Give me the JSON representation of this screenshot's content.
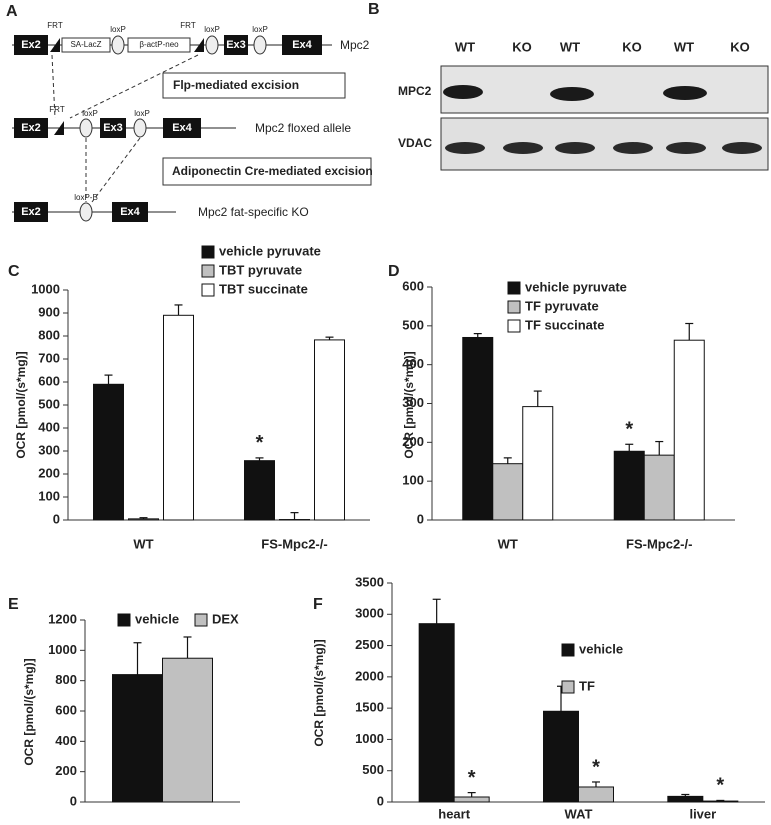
{
  "diagram": {
    "panel_label": "A",
    "rows": [
      {
        "label": "Mpc2",
        "elements": [
          "Ex2",
          "SA-LacZ",
          "β-actP-neo",
          "Ex3",
          "Ex4"
        ],
        "sites": [
          "FRT",
          "loxP",
          "FRT",
          "loxP",
          "loxP"
        ]
      },
      {
        "label": "Mpc2 floxed allele",
        "elements": [
          "Ex2",
          "Ex3",
          "Ex4"
        ],
        "sites": [
          "FRT",
          "loxP",
          "loxP"
        ]
      },
      {
        "label": "Mpc2 fat-specific KO",
        "elements": [
          "Ex2",
          "Ex4"
        ],
        "sites": [
          "loxP-B"
        ]
      }
    ],
    "steps": [
      "Flp-mediated excision",
      "Adiponectin Cre-mediated excision"
    ]
  },
  "blot": {
    "panel_label": "B",
    "lanes": [
      "WT",
      "KO",
      "WT",
      "KO",
      "WT",
      "KO"
    ],
    "rows": [
      "MPC2",
      "VDAC"
    ]
  },
  "chart_data": [
    {
      "type": "bar",
      "panel_label": "C",
      "y_label": "OCR [pmol/(s*mg)]",
      "categories": [
        "WT",
        "FS-Mpc2-/-"
      ],
      "series": [
        {
          "name": "vehicle pyruvate",
          "color": "#111111",
          "values": [
            590,
            258
          ],
          "errors": [
            40,
            12
          ],
          "significance": [
            null,
            "*"
          ]
        },
        {
          "name": "TBT pyruvate",
          "color": "#c0c0c0",
          "values": [
            5,
            2
          ],
          "errors": [
            5,
            30
          ],
          "significance": [
            null,
            null
          ]
        },
        {
          "name": "TBT succinate",
          "color": "#ffffff",
          "values": [
            890,
            783
          ],
          "errors": [
            45,
            12
          ],
          "significance": [
            null,
            null
          ]
        }
      ],
      "ylim": [
        0,
        1000
      ],
      "yticks": [
        0,
        100,
        200,
        300,
        400,
        500,
        600,
        700,
        800,
        900,
        1000
      ],
      "grid": false,
      "legend": "top"
    },
    {
      "type": "bar",
      "panel_label": "D",
      "y_label": "OCR [pmol/(s*mg)]",
      "categories": [
        "WT",
        "FS-Mpc2-/-"
      ],
      "series": [
        {
          "name": "vehicle pyruvate",
          "color": "#111111",
          "values": [
            470,
            177
          ],
          "errors": [
            10,
            18
          ],
          "significance": [
            null,
            "*"
          ]
        },
        {
          "name": "TF pyruvate",
          "color": "#c0c0c0",
          "values": [
            145,
            167
          ],
          "errors": [
            15,
            35
          ],
          "significance": [
            null,
            null
          ]
        },
        {
          "name": "TF succinate",
          "color": "#ffffff",
          "values": [
            292,
            463
          ],
          "errors": [
            40,
            43
          ],
          "significance": [
            null,
            null
          ]
        }
      ],
      "ylim": [
        0,
        600
      ],
      "yticks": [
        0,
        100,
        200,
        300,
        400,
        500,
        600
      ],
      "grid": false,
      "legend": "top"
    },
    {
      "type": "bar",
      "panel_label": "E",
      "y_label": "OCR [pmol/(s*mg)]",
      "categories": [
        null
      ],
      "series": [
        {
          "name": "vehicle",
          "color": "#111111",
          "values": [
            840
          ],
          "errors": [
            210
          ],
          "significance": [
            null
          ]
        },
        {
          "name": "DEX",
          "color": "#c0c0c0",
          "values": [
            948
          ],
          "errors": [
            140
          ],
          "significance": [
            null
          ]
        }
      ],
      "ylim": [
        0,
        1200
      ],
      "yticks": [
        0,
        200,
        400,
        600,
        800,
        1000,
        1200
      ],
      "grid": false,
      "legend": "top"
    },
    {
      "type": "bar",
      "panel_label": "F",
      "y_label": "OCR [pmol/(s*mg)]",
      "categories": [
        "heart",
        "WAT",
        "liver"
      ],
      "series": [
        {
          "name": "vehicle",
          "color": "#111111",
          "values": [
            2850,
            1450,
            90
          ],
          "errors": [
            390,
            400,
            30
          ],
          "significance": [
            null,
            null,
            null
          ]
        },
        {
          "name": "TF",
          "color": "#c0c0c0",
          "values": [
            80,
            240,
            15
          ],
          "errors": [
            70,
            80,
            10
          ],
          "significance": [
            "*",
            "*",
            "*"
          ]
        }
      ],
      "ylim": [
        0,
        3500
      ],
      "yticks": [
        0,
        500,
        1000,
        1500,
        2000,
        2500,
        3000,
        3500
      ],
      "grid": false,
      "legend": "right"
    }
  ]
}
